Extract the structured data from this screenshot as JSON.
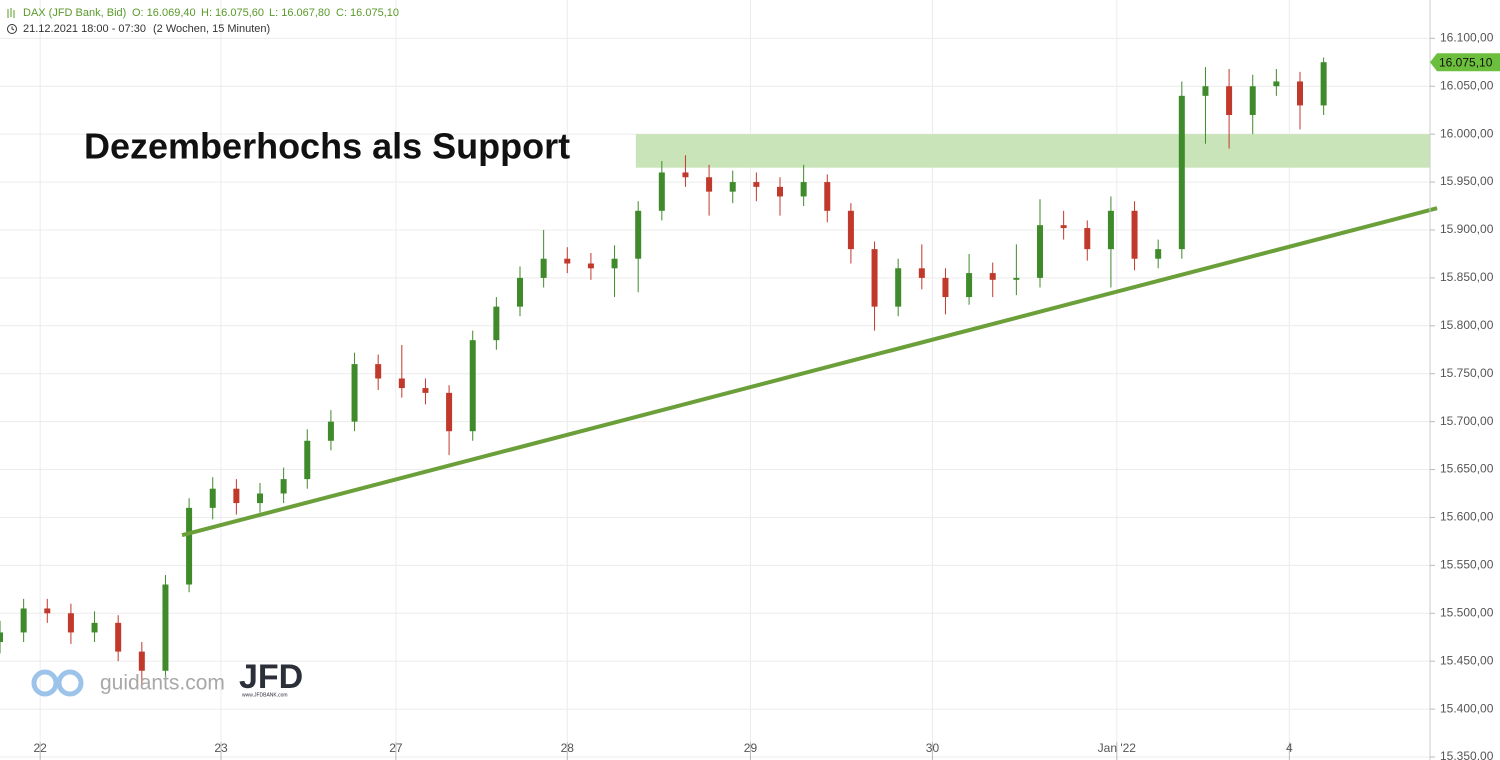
{
  "chart_data": {
    "type": "candlestick",
    "header": {
      "symbol": "DAX (JFD Bank, Bid)",
      "open": "O: 16.069,40",
      "high": "H: 16.075,60",
      "low": "L: 16.067,80",
      "close": "C: 16.075,10",
      "period": "21.12.2021 18:00 - 07:30",
      "range": "(2 Wochen, 15 Minuten)"
    },
    "annotation": "Dezemberhochs als Support",
    "x": [
      0,
      2,
      4,
      6,
      8,
      10,
      12,
      14,
      16,
      18,
      20,
      22,
      24,
      26,
      28,
      30,
      32,
      34,
      36,
      38,
      40,
      42,
      44,
      46,
      48,
      50,
      52,
      54,
      56,
      58,
      60,
      62,
      64,
      66,
      68,
      70,
      72,
      74,
      76,
      78,
      80,
      82,
      84,
      86,
      88,
      90,
      92,
      94,
      96,
      98,
      100,
      102,
      104,
      106,
      108,
      110,
      112
    ],
    "open": [
      15470,
      15480,
      15505,
      15500,
      15480,
      15490,
      15460,
      15440,
      15530,
      15610,
      15630,
      15615,
      15625,
      15640,
      15680,
      15700,
      15760,
      15745,
      15735,
      15730,
      15690,
      15785,
      15820,
      15850,
      15870,
      15865,
      15860,
      15870,
      15920,
      15960,
      15955,
      15940,
      15950,
      15945,
      15935,
      15950,
      15920,
      15880,
      15820,
      15860,
      15850,
      15830,
      15855,
      15848,
      15850,
      15905,
      15902,
      15880,
      15920,
      15870,
      15880,
      16040,
      16050,
      16020,
      16050,
      16055,
      16030
    ],
    "high": [
      15492,
      15515,
      15515,
      15510,
      15502,
      15498,
      15470,
      15540,
      15620,
      15642,
      15640,
      15636,
      15652,
      15692,
      15712,
      15772,
      15770,
      15780,
      15745,
      15738,
      15795,
      15830,
      15862,
      15900,
      15882,
      15876,
      15884,
      15930,
      15972,
      15978,
      15968,
      15962,
      15960,
      15955,
      15968,
      15958,
      15928,
      15888,
      15870,
      15885,
      15860,
      15875,
      15866,
      15885,
      15932,
      15920,
      15910,
      15935,
      15930,
      15890,
      16055,
      16070,
      16068,
      16062,
      16068,
      16065,
      16080
    ],
    "low": [
      15458,
      15470,
      15490,
      15468,
      15470,
      15450,
      15425,
      15432,
      15522,
      15598,
      15603,
      15605,
      15615,
      15630,
      15670,
      15690,
      15733,
      15725,
      15718,
      15665,
      15680,
      15775,
      15810,
      15840,
      15855,
      15848,
      15830,
      15835,
      15910,
      15945,
      15915,
      15928,
      15930,
      15915,
      15925,
      15908,
      15865,
      15795,
      15810,
      15838,
      15812,
      15822,
      15830,
      15832,
      15840,
      15890,
      15868,
      15840,
      15858,
      15860,
      15870,
      15990,
      15985,
      16000,
      16040,
      16005,
      16020
    ],
    "close": [
      15480,
      15505,
      15500,
      15480,
      15490,
      15460,
      15440,
      15530,
      15610,
      15630,
      15615,
      15625,
      15640,
      15680,
      15700,
      15760,
      15745,
      15735,
      15730,
      15690,
      15785,
      15820,
      15850,
      15870,
      15865,
      15860,
      15870,
      15920,
      15960,
      15955,
      15940,
      15950,
      15945,
      15935,
      15950,
      15920,
      15880,
      15820,
      15860,
      15850,
      15830,
      15855,
      15848,
      15850,
      15905,
      15902,
      15880,
      15920,
      15870,
      15880,
      16040,
      16050,
      16020,
      16050,
      16055,
      16030,
      16075.1
    ],
    "up_color": "#3f8a2a",
    "down_color": "#c0392b",
    "last_price": {
      "value": 16075.1,
      "label": "16.075,10"
    },
    "last_price_color": "#6cbf3c",
    "zone": {
      "low": 15965,
      "high": 16000,
      "x_start": 53.8,
      "color": "#c9e4b8"
    },
    "trendline": {
      "x": [
        15.4,
        121.6
      ],
      "y": [
        15581.5,
        15922.7
      ],
      "color": "#6b9f3a"
    },
    "xlim": [
      0,
      121
    ],
    "ylim": [
      15350,
      16140
    ],
    "xticks": [
      {
        "value": 3.4,
        "label": "22"
      },
      {
        "value": 18.7,
        "label": "23"
      },
      {
        "value": 33.5,
        "label": "27"
      },
      {
        "value": 48.0,
        "label": "28"
      },
      {
        "value": 63.5,
        "label": "29"
      },
      {
        "value": 78.9,
        "label": "30"
      },
      {
        "value": 94.5,
        "label": "Jan '22"
      },
      {
        "value": 109.1,
        "label": "4"
      }
    ],
    "yticks": [
      {
        "value": 15350,
        "label": "15.350,00"
      },
      {
        "value": 15400,
        "label": "15.400,00"
      },
      {
        "value": 15450,
        "label": "15.450,00"
      },
      {
        "value": 15500,
        "label": "15.500,00"
      },
      {
        "value": 15550,
        "label": "15.550,00"
      },
      {
        "value": 15600,
        "label": "15.600,00"
      },
      {
        "value": 15650,
        "label": "15.650,00"
      },
      {
        "value": 15700,
        "label": "15.700,00"
      },
      {
        "value": 15750,
        "label": "15.750,00"
      },
      {
        "value": 15800,
        "label": "15.800,00"
      },
      {
        "value": 15850,
        "label": "15.850,00"
      },
      {
        "value": 15900,
        "label": "15.900,00"
      },
      {
        "value": 15950,
        "label": "15.950,00"
      },
      {
        "value": 16000,
        "label": "16.000,00"
      },
      {
        "value": 16050,
        "label": "16.050,00"
      },
      {
        "value": 16100,
        "label": "16.100,00"
      }
    ],
    "grid": true,
    "logo": {
      "site": "guidants.com",
      "brand": "JFD",
      "brand_url": "www.JFDBANK.com"
    }
  }
}
